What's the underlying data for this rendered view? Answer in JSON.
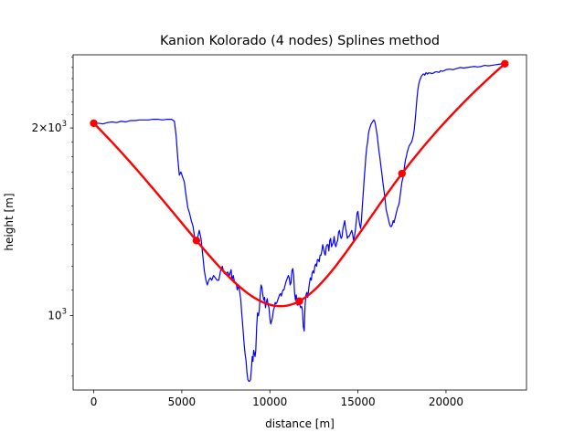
{
  "chart_data": {
    "type": "line",
    "title": "Kanion Kolorado (4 nodes) Splines method",
    "xlabel": "distance [m]",
    "ylabel": "height [m]",
    "xlim": [
      -1170,
      24570
    ],
    "ylim": [
      760,
      2620
    ],
    "yscale": "log",
    "x_ticks": [
      0,
      5000,
      10000,
      15000,
      20000
    ],
    "x_tick_labels": [
      "0",
      "5000",
      "10000",
      "15000",
      "20000"
    ],
    "y_ticks": [
      1000,
      2000
    ],
    "y_tick_labels": [
      "10^3",
      "2×10^3"
    ],
    "y_minor_ticks": [
      800,
      900,
      1100,
      1200,
      1300,
      1400,
      1500,
      1600,
      1700,
      1800,
      1900,
      2100,
      2200,
      2300,
      2400,
      2500,
      2600
    ],
    "grid": false,
    "colors": {
      "profile": "#0000ff",
      "spline": "#ff0000",
      "nodes": "#ff0000"
    },
    "series": [
      {
        "name": "",
        "style": "thin-line",
        "points": [
          [
            0,
            2035
          ],
          [
            270,
            2035
          ],
          [
            520,
            2030
          ],
          [
            780,
            2040
          ],
          [
            1040,
            2045
          ],
          [
            1300,
            2040
          ],
          [
            1560,
            2050
          ],
          [
            1820,
            2045
          ],
          [
            2080,
            2055
          ],
          [
            2340,
            2055
          ],
          [
            2600,
            2060
          ],
          [
            2860,
            2060
          ],
          [
            3120,
            2060
          ],
          [
            3380,
            2065
          ],
          [
            3640,
            2065
          ],
          [
            3900,
            2060
          ],
          [
            4160,
            2065
          ],
          [
            4420,
            2065
          ],
          [
            4580,
            2050
          ],
          [
            4680,
            1940
          ],
          [
            4770,
            1790
          ],
          [
            4860,
            1680
          ],
          [
            4950,
            1700
          ],
          [
            5040,
            1670
          ],
          [
            5140,
            1640
          ],
          [
            5240,
            1560
          ],
          [
            5340,
            1490
          ],
          [
            5440,
            1460
          ],
          [
            5540,
            1420
          ],
          [
            5640,
            1390
          ],
          [
            5720,
            1340
          ],
          [
            5800,
            1310
          ],
          [
            5890,
            1330
          ],
          [
            5990,
            1370
          ],
          [
            6090,
            1330
          ],
          [
            6190,
            1250
          ],
          [
            6280,
            1180
          ],
          [
            6370,
            1140
          ],
          [
            6450,
            1120
          ],
          [
            6530,
            1140
          ],
          [
            6620,
            1150
          ],
          [
            6700,
            1140
          ],
          [
            6800,
            1160
          ],
          [
            6900,
            1150
          ],
          [
            7000,
            1140
          ],
          [
            7100,
            1140
          ],
          [
            7200,
            1180
          ],
          [
            7300,
            1200
          ],
          [
            7400,
            1170
          ],
          [
            7500,
            1165
          ],
          [
            7600,
            1175
          ],
          [
            7700,
            1160
          ],
          [
            7800,
            1185
          ],
          [
            7850,
            1140
          ],
          [
            7920,
            1160
          ],
          [
            8000,
            1130
          ],
          [
            8080,
            1130
          ],
          [
            8150,
            1100
          ],
          [
            8220,
            1120
          ],
          [
            8290,
            1090
          ],
          [
            8350,
            1060
          ],
          [
            8400,
            1010
          ],
          [
            8440,
            980
          ],
          [
            8490,
            940
          ],
          [
            8540,
            900
          ],
          [
            8590,
            870
          ],
          [
            8650,
            845
          ],
          [
            8700,
            810
          ],
          [
            8750,
            790
          ],
          [
            8800,
            785
          ],
          [
            8850,
            785
          ],
          [
            8900,
            790
          ],
          [
            8950,
            820
          ],
          [
            9000,
            860
          ],
          [
            9040,
            845
          ],
          [
            9080,
            880
          ],
          [
            9120,
            870
          ],
          [
            9160,
            860
          ],
          [
            9200,
            880
          ],
          [
            9250,
            960
          ],
          [
            9300,
            1010
          ],
          [
            9350,
            1000
          ],
          [
            9400,
            1020
          ],
          [
            9450,
            1080
          ],
          [
            9500,
            1120
          ],
          [
            9550,
            1110
          ],
          [
            9600,
            1080
          ],
          [
            9650,
            1060
          ],
          [
            9700,
            1070
          ],
          [
            9750,
            1030
          ],
          [
            9800,
            1050
          ],
          [
            9850,
            1065
          ],
          [
            9900,
            1040
          ],
          [
            9950,
            1030
          ],
          [
            10000,
            990
          ],
          [
            10050,
            970
          ],
          [
            10100,
            980
          ],
          [
            10150,
            995
          ],
          [
            10200,
            1020
          ],
          [
            10250,
            1030
          ],
          [
            10300,
            1050
          ],
          [
            10350,
            1045
          ],
          [
            10400,
            1050
          ],
          [
            10450,
            1060
          ],
          [
            10500,
            1070
          ],
          [
            10550,
            1080
          ],
          [
            10600,
            1085
          ],
          [
            10650,
            1075
          ],
          [
            10700,
            1090
          ],
          [
            10750,
            1100
          ],
          [
            10800,
            1100
          ],
          [
            10850,
            1115
          ],
          [
            10900,
            1130
          ],
          [
            10950,
            1140
          ],
          [
            11000,
            1150
          ],
          [
            11050,
            1160
          ],
          [
            11100,
            1150
          ],
          [
            11150,
            1120
          ],
          [
            11200,
            1130
          ],
          [
            11250,
            1180
          ],
          [
            11300,
            1190
          ],
          [
            11350,
            1160
          ],
          [
            11400,
            1090
          ],
          [
            11450,
            1060
          ],
          [
            11500,
            1080
          ],
          [
            11550,
            1040
          ],
          [
            11600,
            1040
          ],
          [
            11650,
            1060
          ],
          [
            11700,
            1040
          ],
          [
            11750,
            1030
          ],
          [
            11800,
            1035
          ],
          [
            11850,
            1020
          ],
          [
            11900,
            960
          ],
          [
            11950,
            945
          ],
          [
            12000,
            1040
          ],
          [
            12050,
            1080
          ],
          [
            12100,
            1090
          ],
          [
            12150,
            1070
          ],
          [
            12200,
            1100
          ],
          [
            12250,
            1130
          ],
          [
            12300,
            1150
          ],
          [
            12350,
            1140
          ],
          [
            12400,
            1170
          ],
          [
            12450,
            1180
          ],
          [
            12500,
            1170
          ],
          [
            12550,
            1200
          ],
          [
            12600,
            1210
          ],
          [
            12650,
            1200
          ],
          [
            12700,
            1230
          ],
          [
            12750,
            1230
          ],
          [
            12800,
            1220
          ],
          [
            12850,
            1250
          ],
          [
            12900,
            1250
          ],
          [
            12950,
            1270
          ],
          [
            13000,
            1300
          ],
          [
            13050,
            1280
          ],
          [
            13100,
            1260
          ],
          [
            13150,
            1250
          ],
          [
            13200,
            1290
          ],
          [
            13250,
            1300
          ],
          [
            13300,
            1300
          ],
          [
            13350,
            1270
          ],
          [
            13400,
            1320
          ],
          [
            13450,
            1330
          ],
          [
            13500,
            1290
          ],
          [
            13550,
            1300
          ],
          [
            13600,
            1310
          ],
          [
            13650,
            1340
          ],
          [
            13700,
            1300
          ],
          [
            13750,
            1290
          ],
          [
            13800,
            1310
          ],
          [
            13850,
            1320
          ],
          [
            13900,
            1360
          ],
          [
            13950,
            1370
          ],
          [
            14000,
            1345
          ],
          [
            14050,
            1330
          ],
          [
            14100,
            1340
          ],
          [
            14150,
            1380
          ],
          [
            14200,
            1400
          ],
          [
            14250,
            1420
          ],
          [
            14300,
            1380
          ],
          [
            14350,
            1360
          ],
          [
            14400,
            1330
          ],
          [
            14450,
            1340
          ],
          [
            14500,
            1340
          ],
          [
            14550,
            1350
          ],
          [
            14600,
            1360
          ],
          [
            14650,
            1370
          ],
          [
            14700,
            1350
          ],
          [
            14750,
            1320
          ],
          [
            14800,
            1340
          ],
          [
            14850,
            1370
          ],
          [
            14900,
            1410
          ],
          [
            14950,
            1460
          ],
          [
            15000,
            1470
          ],
          [
            15050,
            1430
          ],
          [
            15100,
            1400
          ],
          [
            15150,
            1380
          ],
          [
            15200,
            1420
          ],
          [
            15250,
            1500
          ],
          [
            15300,
            1570
          ],
          [
            15350,
            1650
          ],
          [
            15400,
            1720
          ],
          [
            15450,
            1800
          ],
          [
            15500,
            1860
          ],
          [
            15550,
            1900
          ],
          [
            15600,
            1960
          ],
          [
            15650,
            1990
          ],
          [
            15700,
            2010
          ],
          [
            15750,
            2030
          ],
          [
            15800,
            2040
          ],
          [
            15850,
            2050
          ],
          [
            15900,
            2060
          ],
          [
            15950,
            2050
          ],
          [
            16000,
            2020
          ],
          [
            16050,
            1980
          ],
          [
            16100,
            1940
          ],
          [
            16150,
            1880
          ],
          [
            16200,
            1830
          ],
          [
            16250,
            1790
          ],
          [
            16300,
            1740
          ],
          [
            16350,
            1700
          ],
          [
            16400,
            1650
          ],
          [
            16450,
            1610
          ],
          [
            16500,
            1570
          ],
          [
            16550,
            1530
          ],
          [
            16600,
            1480
          ],
          [
            16650,
            1460
          ],
          [
            16700,
            1440
          ],
          [
            16750,
            1420
          ],
          [
            16800,
            1400
          ],
          [
            16850,
            1390
          ],
          [
            16900,
            1390
          ],
          [
            16950,
            1400
          ],
          [
            17000,
            1420
          ],
          [
            17050,
            1410
          ],
          [
            17100,
            1430
          ],
          [
            17150,
            1450
          ],
          [
            17200,
            1470
          ],
          [
            17250,
            1490
          ],
          [
            17300,
            1500
          ],
          [
            17350,
            1520
          ],
          [
            17400,
            1560
          ],
          [
            17450,
            1600
          ],
          [
            17500,
            1640
          ],
          [
            17550,
            1660
          ],
          [
            17600,
            1700
          ],
          [
            17650,
            1740
          ],
          [
            17700,
            1780
          ],
          [
            17750,
            1800
          ],
          [
            17800,
            1830
          ],
          [
            17850,
            1850
          ],
          [
            17900,
            1870
          ],
          [
            17950,
            1880
          ],
          [
            18000,
            1890
          ],
          [
            18050,
            1900
          ],
          [
            18100,
            1920
          ],
          [
            18150,
            1950
          ],
          [
            18200,
            1990
          ],
          [
            18250,
            2060
          ],
          [
            18300,
            2140
          ],
          [
            18350,
            2230
          ],
          [
            18400,
            2300
          ],
          [
            18450,
            2350
          ],
          [
            18500,
            2380
          ],
          [
            18550,
            2400
          ],
          [
            18600,
            2420
          ],
          [
            18650,
            2430
          ],
          [
            18700,
            2440
          ],
          [
            18750,
            2440
          ],
          [
            18800,
            2430
          ],
          [
            18850,
            2450
          ],
          [
            18900,
            2450
          ],
          [
            18950,
            2440
          ],
          [
            19000,
            2450
          ],
          [
            19100,
            2450
          ],
          [
            19200,
            2445
          ],
          [
            19300,
            2450
          ],
          [
            19400,
            2460
          ],
          [
            19500,
            2460
          ],
          [
            19600,
            2455
          ],
          [
            19700,
            2470
          ],
          [
            19800,
            2465
          ],
          [
            19900,
            2470
          ],
          [
            20000,
            2480
          ],
          [
            20200,
            2485
          ],
          [
            20400,
            2480
          ],
          [
            20600,
            2490
          ],
          [
            20800,
            2500
          ],
          [
            21000,
            2495
          ],
          [
            21200,
            2500
          ],
          [
            21400,
            2505
          ],
          [
            21600,
            2510
          ],
          [
            21800,
            2505
          ],
          [
            22000,
            2510
          ],
          [
            22200,
            2520
          ],
          [
            22400,
            2515
          ],
          [
            22600,
            2520
          ],
          [
            22800,
            2525
          ],
          [
            23000,
            2530
          ],
          [
            23200,
            2535
          ],
          [
            23340,
            2530
          ]
        ]
      },
      {
        "name": "",
        "style": "spline",
        "nodes": [
          [
            0,
            2035
          ],
          [
            5830,
            1320
          ],
          [
            11670,
            1055
          ],
          [
            17500,
            1690
          ],
          [
            23340,
            2535
          ]
        ]
      }
    ]
  }
}
